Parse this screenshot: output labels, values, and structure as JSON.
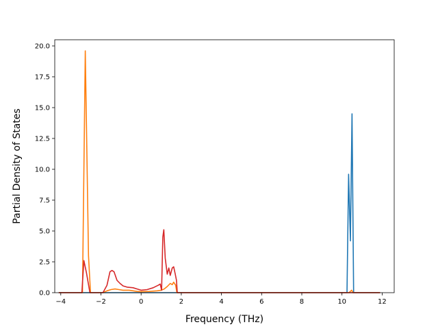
{
  "chart_data": {
    "type": "line",
    "title": "",
    "xlabel": "Frequency (THz)",
    "ylabel": "Partial Density of States",
    "xlim": [
      -4.3,
      12.6
    ],
    "ylim": [
      0,
      20.5
    ],
    "grid": false,
    "x_ticks": [
      -4,
      -2,
      0,
      2,
      4,
      6,
      8,
      10,
      12
    ],
    "x_tick_labels": [
      "−4",
      "−2",
      "0",
      "2",
      "4",
      "6",
      "8",
      "10",
      "12"
    ],
    "y_ticks": [
      0,
      2.5,
      5,
      7.5,
      10,
      12.5,
      15,
      17.5,
      20
    ],
    "y_tick_labels": [
      "0.0",
      "2.5",
      "5.0",
      "7.5",
      "10.0",
      "12.5",
      "15.0",
      "17.5",
      "20.0"
    ],
    "series": [
      {
        "color": "#1f77b4",
        "points": [
          [
            -4.1,
            0
          ],
          [
            10.25,
            0
          ],
          [
            10.33,
            9.6
          ],
          [
            10.42,
            4.2
          ],
          [
            10.5,
            14.5
          ],
          [
            10.58,
            0
          ],
          [
            11.9,
            0
          ]
        ]
      },
      {
        "color": "#ff7f0e",
        "points": [
          [
            -4.1,
            0
          ],
          [
            -2.92,
            0
          ],
          [
            -2.78,
            19.6
          ],
          [
            -2.62,
            3.0
          ],
          [
            -2.52,
            0
          ],
          [
            -1.9,
            0
          ],
          [
            -1.7,
            0.15
          ],
          [
            -1.5,
            0.25
          ],
          [
            -1.3,
            0.3
          ],
          [
            -1.1,
            0.25
          ],
          [
            -0.9,
            0.2
          ],
          [
            -0.6,
            0.2
          ],
          [
            -0.4,
            0.15
          ],
          [
            -0.2,
            0.1
          ],
          [
            0,
            0.08
          ],
          [
            0.4,
            0.1
          ],
          [
            0.8,
            0.15
          ],
          [
            1.0,
            0.2
          ],
          [
            1.15,
            0.3
          ],
          [
            1.3,
            0.5
          ],
          [
            1.45,
            0.75
          ],
          [
            1.55,
            0.65
          ],
          [
            1.62,
            0.85
          ],
          [
            1.72,
            0.6
          ],
          [
            1.78,
            0
          ],
          [
            10.35,
            0
          ],
          [
            10.48,
            0.2
          ],
          [
            10.55,
            0
          ],
          [
            11.9,
            0
          ]
        ]
      },
      {
        "color": "#d62728",
        "points": [
          [
            -4.1,
            0
          ],
          [
            -2.95,
            0
          ],
          [
            -2.85,
            2.6
          ],
          [
            -2.72,
            1.6
          ],
          [
            -2.55,
            0
          ],
          [
            -1.9,
            0
          ],
          [
            -1.7,
            0.6
          ],
          [
            -1.55,
            1.7
          ],
          [
            -1.45,
            1.8
          ],
          [
            -1.35,
            1.7
          ],
          [
            -1.2,
            1.0
          ],
          [
            -1.05,
            0.75
          ],
          [
            -0.9,
            0.55
          ],
          [
            -0.7,
            0.45
          ],
          [
            -0.4,
            0.4
          ],
          [
            -0.2,
            0.3
          ],
          [
            0,
            0.2
          ],
          [
            0.3,
            0.25
          ],
          [
            0.6,
            0.4
          ],
          [
            0.85,
            0.6
          ],
          [
            0.95,
            0.7
          ],
          [
            1.02,
            0.2
          ],
          [
            1.08,
            4.5
          ],
          [
            1.13,
            5.1
          ],
          [
            1.2,
            2.8
          ],
          [
            1.3,
            1.5
          ],
          [
            1.38,
            2.0
          ],
          [
            1.45,
            1.4
          ],
          [
            1.55,
            2.0
          ],
          [
            1.62,
            2.1
          ],
          [
            1.7,
            1.5
          ],
          [
            1.76,
            1.0
          ],
          [
            1.8,
            0
          ],
          [
            11.9,
            0
          ]
        ]
      }
    ]
  }
}
